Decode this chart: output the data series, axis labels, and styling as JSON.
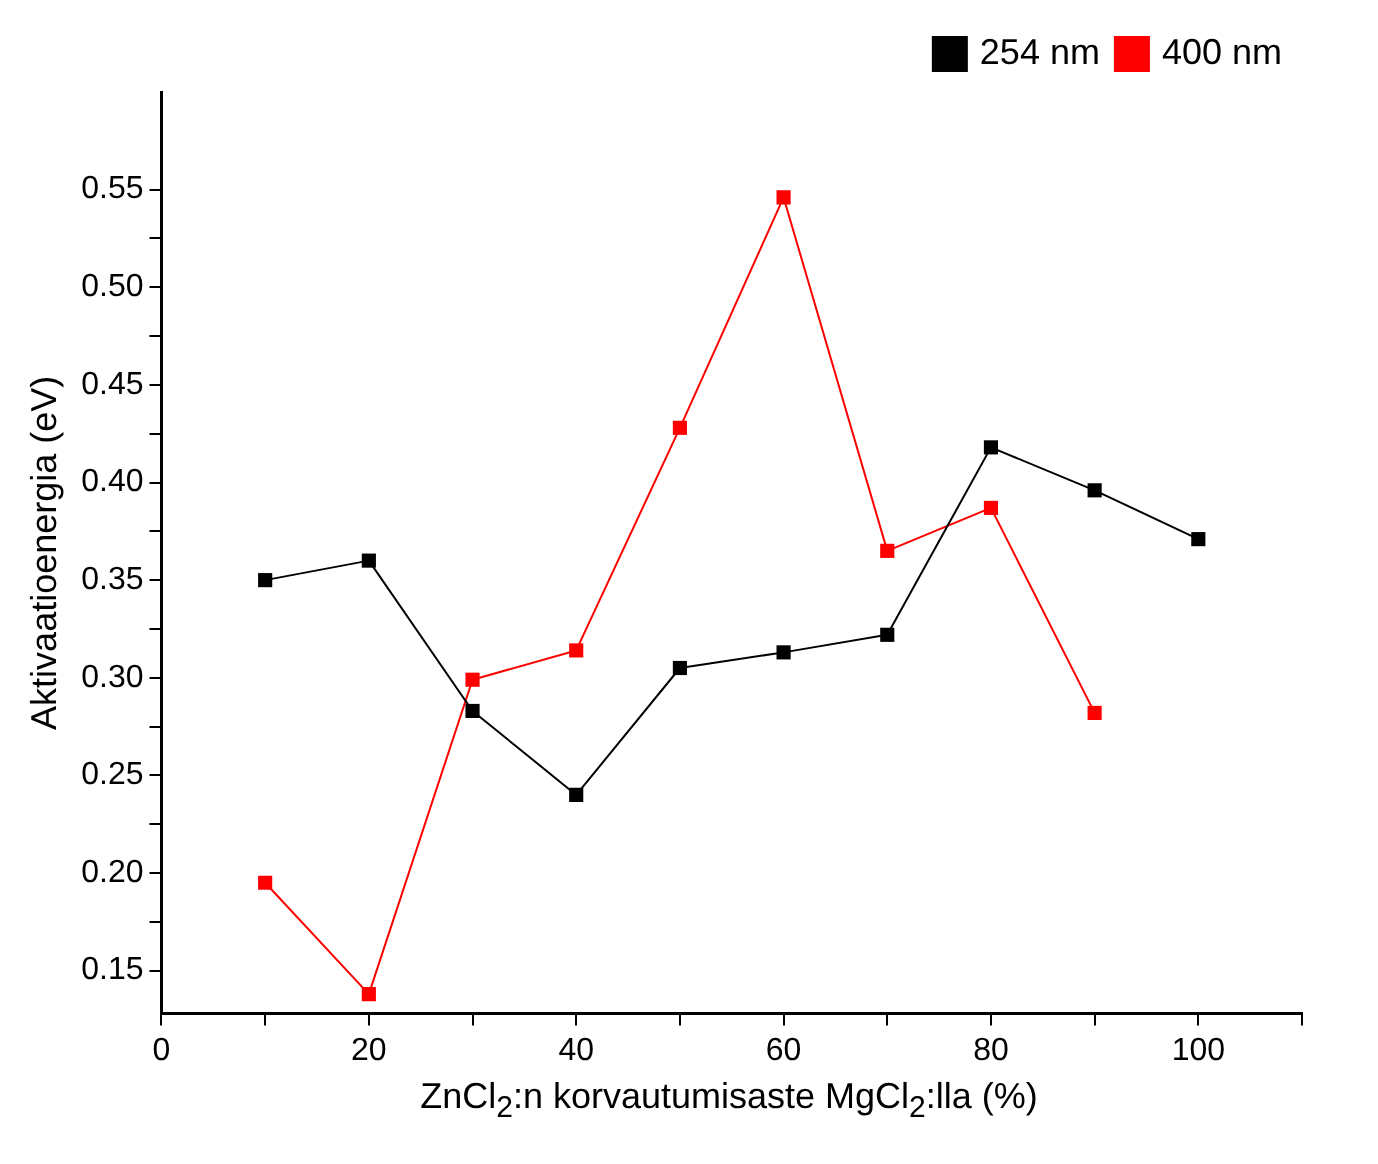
{
  "chart_data": {
    "type": "line",
    "xlabel": "ZnCl$_{2}$:n korvautumisaste MgCl$_{2}$:lla (%)",
    "ylabel": "Aktivaatioenergia (eV)",
    "series": [
      {
        "name": "254 nm",
        "color": "#000000",
        "x": [
          10,
          20,
          30,
          40,
          50,
          60,
          70,
          80,
          90,
          100
        ],
        "values": [
          0.35,
          0.36,
          0.283,
          0.24,
          0.305,
          0.313,
          0.322,
          0.418,
          0.396,
          0.371
        ]
      },
      {
        "name": "400 nm",
        "color": "#ff0000",
        "x": [
          10,
          20,
          30,
          40,
          50,
          60,
          70,
          80,
          90
        ],
        "values": [
          0.195,
          0.138,
          0.299,
          0.314,
          0.428,
          0.546,
          0.365,
          0.387,
          0.282
        ]
      }
    ],
    "xlim": [
      0,
      110
    ],
    "xticks": [
      0,
      {
        "value": 10,
        "label": null
      },
      20,
      {
        "value": 30,
        "label": null
      },
      40,
      {
        "value": 50,
        "label": null
      },
      60,
      {
        "value": 70,
        "label": null
      },
      80,
      {
        "value": 90,
        "label": null
      },
      100,
      {
        "value": 110,
        "label": null
      }
    ],
    "ylim": [
      0.128,
      0.6
    ],
    "yticks": [
      {
        "value": 0.15,
        "label": "0.15"
      },
      {
        "value": 0.175,
        "label": null
      },
      {
        "value": 0.2,
        "label": "0.20"
      },
      {
        "value": 0.225,
        "label": null
      },
      {
        "value": 0.25,
        "label": "0.25"
      },
      {
        "value": 0.275,
        "label": null
      },
      {
        "value": 0.3,
        "label": "0.30"
      },
      {
        "value": 0.325,
        "label": null
      },
      {
        "value": 0.35,
        "label": "0.35"
      },
      {
        "value": 0.375,
        "label": null
      },
      {
        "value": 0.4,
        "label": "0.40"
      },
      {
        "value": 0.425,
        "label": null
      },
      {
        "value": 0.45,
        "label": "0.45"
      },
      {
        "value": 0.475,
        "label": null
      },
      {
        "value": 0.5,
        "label": "0.50"
      },
      {
        "value": 0.525,
        "label": null
      },
      {
        "value": 0.55,
        "label": "0.55"
      }
    ],
    "grid": false,
    "legend": "top right",
    "marker": "square",
    "line_style": "solid"
  }
}
